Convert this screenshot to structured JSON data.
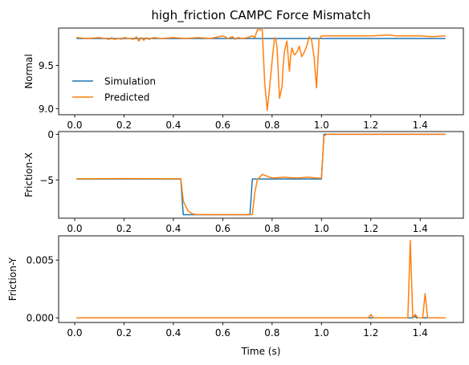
{
  "chart_data": {
    "type": "line",
    "title": "high_friction CAMPC Force Mismatch",
    "xlabel": "Time (s)",
    "legend": {
      "entries": [
        "Simulation",
        "Predicted"
      ],
      "location": "center-left"
    },
    "colors": {
      "Simulation": "#1f77b4",
      "Predicted": "#ff7f0e"
    },
    "subplots": [
      {
        "ylabel": "Normal",
        "xlim": [
          -0.065,
          1.575
        ],
        "ylim": [
          8.93,
          9.93
        ],
        "xticks": [
          0.0,
          0.2,
          0.4,
          0.6,
          0.8,
          1.0,
          1.2,
          1.4
        ],
        "xtick_labels": [
          "0.0",
          "0.2",
          "0.4",
          "0.6",
          "0.8",
          "1.0",
          "1.2",
          "1.4"
        ],
        "yticks": [
          9.0,
          9.5
        ],
        "ytick_labels": [
          "9.0",
          "9.5"
        ],
        "series": [
          {
            "name": "Simulation",
            "x": [
              0.01,
              1.5
            ],
            "y": [
              9.81,
              9.81
            ]
          },
          {
            "name": "Predicted",
            "x": [
              0.01,
              0.05,
              0.1,
              0.14,
              0.15,
              0.16,
              0.18,
              0.19,
              0.2,
              0.22,
              0.24,
              0.25,
              0.26,
              0.27,
              0.28,
              0.29,
              0.3,
              0.32,
              0.35,
              0.4,
              0.45,
              0.5,
              0.55,
              0.6,
              0.61,
              0.62,
              0.64,
              0.65,
              0.66,
              0.68,
              0.7,
              0.72,
              0.73,
              0.74,
              0.75,
              0.76,
              0.765,
              0.77,
              0.78,
              0.79,
              0.8,
              0.81,
              0.815,
              0.82,
              0.83,
              0.84,
              0.845,
              0.85,
              0.86,
              0.87,
              0.875,
              0.88,
              0.89,
              0.9,
              0.91,
              0.92,
              0.93,
              0.94,
              0.95,
              0.96,
              0.97,
              0.98,
              0.99,
              1.0,
              1.02,
              1.05,
              1.1,
              1.2,
              1.28,
              1.3,
              1.35,
              1.4,
              1.45,
              1.5
            ],
            "y": [
              9.82,
              9.81,
              9.82,
              9.8,
              9.82,
              9.8,
              9.81,
              9.8,
              9.82,
              9.81,
              9.8,
              9.83,
              9.78,
              9.82,
              9.79,
              9.82,
              9.8,
              9.82,
              9.81,
              9.82,
              9.81,
              9.82,
              9.81,
              9.84,
              9.83,
              9.81,
              9.83,
              9.8,
              9.82,
              9.81,
              9.82,
              9.84,
              9.82,
              9.91,
              9.91,
              9.91,
              9.6,
              9.3,
              8.98,
              9.25,
              9.55,
              9.82,
              9.8,
              9.7,
              9.12,
              9.25,
              9.5,
              9.66,
              9.78,
              9.43,
              9.6,
              9.7,
              9.62,
              9.65,
              9.72,
              9.6,
              9.65,
              9.72,
              9.83,
              9.79,
              9.6,
              9.24,
              9.8,
              9.84,
              9.84,
              9.84,
              9.84,
              9.84,
              9.85,
              9.84,
              9.84,
              9.84,
              9.83,
              9.84
            ]
          }
        ]
      },
      {
        "ylabel": "Friction-X",
        "xlim": [
          -0.065,
          1.575
        ],
        "ylim": [
          -9.2,
          0.3
        ],
        "xticks": [
          0.0,
          0.2,
          0.4,
          0.6,
          0.8,
          1.0,
          1.2,
          1.4
        ],
        "xtick_labels": [
          "0.0",
          "0.2",
          "0.4",
          "0.6",
          "0.8",
          "1.0",
          "1.2",
          "1.4"
        ],
        "yticks": [
          -5,
          0
        ],
        "ytick_labels": [
          "−5",
          "0"
        ],
        "series": [
          {
            "name": "Simulation",
            "x": [
              0.01,
              0.43,
              0.44,
              0.71,
              0.72,
              1.0,
              1.01,
              1.5
            ],
            "y": [
              -4.9,
              -4.9,
              -8.82,
              -8.82,
              -4.9,
              -4.9,
              0.0,
              0.0
            ]
          },
          {
            "name": "Predicted",
            "x": [
              0.01,
              0.2,
              0.43,
              0.44,
              0.45,
              0.46,
              0.47,
              0.48,
              0.5,
              0.6,
              0.72,
              0.73,
              0.74,
              0.76,
              0.78,
              0.8,
              0.85,
              0.9,
              0.95,
              0.98,
              1.0,
              1.01,
              1.02,
              1.1,
              1.5
            ],
            "y": [
              -4.88,
              -4.86,
              -4.88,
              -7.3,
              -7.9,
              -8.4,
              -8.6,
              -8.75,
              -8.8,
              -8.8,
              -8.8,
              -6.4,
              -5.0,
              -4.4,
              -4.6,
              -4.8,
              -4.7,
              -4.8,
              -4.7,
              -4.8,
              -4.8,
              -0.2,
              0.0,
              0.0,
              0.0
            ]
          }
        ]
      },
      {
        "ylabel": "Friction-Y",
        "xlim": [
          -0.065,
          1.575
        ],
        "ylim": [
          -0.0004,
          0.0071
        ],
        "xticks": [
          0.0,
          0.2,
          0.4,
          0.6,
          0.8,
          1.0,
          1.2,
          1.4
        ],
        "xtick_labels": [
          "0.0",
          "0.2",
          "0.4",
          "0.6",
          "0.8",
          "1.0",
          "1.2",
          "1.4"
        ],
        "yticks": [
          0.0,
          0.005
        ],
        "ytick_labels": [
          "0.000",
          "0.005"
        ],
        "series": [
          {
            "name": "Simulation",
            "x": [
              0.01,
              1.37,
              1.38,
              1.385,
              1.39,
              1.5
            ],
            "y": [
              0.0,
              0.0,
              0.00015,
              0.0,
              0.0,
              0.0
            ]
          },
          {
            "name": "Predicted",
            "x": [
              0.01,
              1.19,
              1.2,
              1.21,
              1.35,
              1.36,
              1.37,
              1.38,
              1.39,
              1.4,
              1.41,
              1.42,
              1.43,
              1.44,
              1.45,
              1.5
            ],
            "y": [
              0.0,
              0.0,
              0.0003,
              0.0,
              0.0,
              0.0067,
              0.0,
              0.0003,
              0.0,
              0.0,
              0.0,
              0.0021,
              0.0,
              0.0,
              0.0,
              0.0
            ]
          }
        ]
      }
    ]
  }
}
